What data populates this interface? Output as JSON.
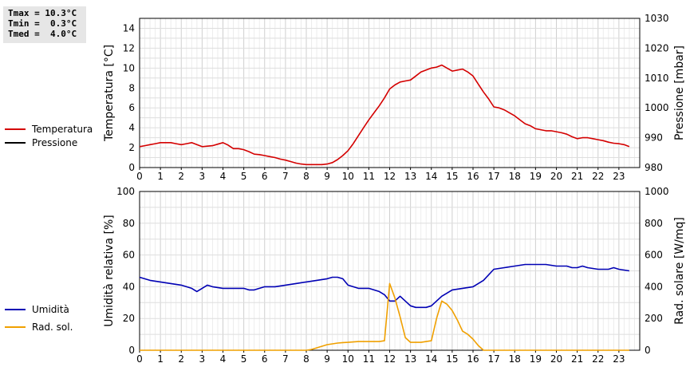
{
  "stats": {
    "tmax": "Tmax = 10.3°C",
    "tmin": "Tmin =  0.3°C",
    "tmed": "Tmed =  4.0°C"
  },
  "colors": {
    "temperature": "#d40000",
    "pressure": "#000000",
    "humidity": "#0000b4",
    "radiation": "#f0a000",
    "grid": "#d8d8d8"
  },
  "chart_data": [
    {
      "type": "line",
      "x_ticks": [
        "0",
        "1",
        "2",
        "3",
        "4",
        "5",
        "6",
        "7",
        "8",
        "9",
        "10",
        "11",
        "12",
        "13",
        "14",
        "15",
        "16",
        "17",
        "18",
        "19",
        "20",
        "21",
        "22",
        "23"
      ],
      "xlim": [
        0,
        24
      ],
      "ylabel": "Temperatura [°C]",
      "ylim": [
        0,
        15
      ],
      "y_ticks": [
        "0",
        "2",
        "4",
        "6",
        "8",
        "10",
        "12",
        "14"
      ],
      "y2label": "Pressione [mbar]",
      "y2lim": [
        980,
        1030
      ],
      "y2_ticks": [
        "980",
        "990",
        "1000",
        "1010",
        "1020",
        "1030"
      ],
      "grid": true,
      "series": [
        {
          "name": "Temperatura",
          "axis": "left",
          "x": [
            0,
            0.25,
            0.5,
            0.75,
            1,
            1.25,
            1.5,
            1.75,
            2,
            2.25,
            2.5,
            2.75,
            3,
            3.25,
            3.5,
            3.75,
            4,
            4.25,
            4.5,
            4.75,
            5,
            5.25,
            5.5,
            5.75,
            6,
            6.25,
            6.5,
            6.75,
            7,
            7.25,
            7.5,
            7.75,
            8,
            8.25,
            8.5,
            8.75,
            9,
            9.25,
            9.5,
            9.75,
            10,
            10.25,
            10.5,
            10.75,
            11,
            11.25,
            11.5,
            11.75,
            12,
            12.25,
            12.5,
            12.75,
            13,
            13.25,
            13.5,
            13.75,
            14,
            14.25,
            14.5,
            14.75,
            15,
            15.25,
            15.5,
            15.75,
            16,
            16.25,
            16.5,
            16.75,
            17,
            17.25,
            17.5,
            17.75,
            18,
            18.25,
            18.5,
            18.75,
            19,
            19.25,
            19.5,
            19.75,
            20,
            20.25,
            20.5,
            20.75,
            21,
            21.25,
            21.5,
            21.75,
            22,
            22.25,
            22.5,
            22.75,
            23,
            23.25,
            23.5
          ],
          "values": [
            2.1,
            2.2,
            2.3,
            2.4,
            2.5,
            2.5,
            2.5,
            2.4,
            2.3,
            2.4,
            2.5,
            2.3,
            2.1,
            2.15,
            2.2,
            2.35,
            2.5,
            2.25,
            1.9,
            1.9,
            1.8,
            1.6,
            1.35,
            1.3,
            1.2,
            1.1,
            1.0,
            0.85,
            0.75,
            0.6,
            0.45,
            0.35,
            0.3,
            0.3,
            0.3,
            0.3,
            0.35,
            0.5,
            0.8,
            1.2,
            1.7,
            2.4,
            3.2,
            4.0,
            4.8,
            5.5,
            6.2,
            7.0,
            7.9,
            8.3,
            8.6,
            8.7,
            8.8,
            9.2,
            9.6,
            9.8,
            10.0,
            10.1,
            10.3,
            10.0,
            9.7,
            9.8,
            9.9,
            9.6,
            9.2,
            8.4,
            7.6,
            6.9,
            6.1,
            6.0,
            5.8,
            5.5,
            5.2,
            4.8,
            4.4,
            4.2,
            3.9,
            3.8,
            3.7,
            3.7,
            3.6,
            3.5,
            3.35,
            3.1,
            2.9,
            3.0,
            3.0,
            2.9,
            2.8,
            2.7,
            2.55,
            2.45,
            2.4,
            2.3,
            2.1
          ]
        },
        {
          "name": "Pressione",
          "axis": "right",
          "x": [],
          "values": []
        }
      ]
    },
    {
      "type": "line",
      "x_ticks": [
        "0",
        "1",
        "2",
        "3",
        "4",
        "5",
        "6",
        "7",
        "8",
        "9",
        "10",
        "11",
        "12",
        "13",
        "14",
        "15",
        "16",
        "17",
        "18",
        "19",
        "20",
        "21",
        "22",
        "23"
      ],
      "xlim": [
        0,
        24
      ],
      "ylabel": "Umidità relativa [%]",
      "ylim": [
        0,
        100
      ],
      "y_ticks": [
        "0",
        "20",
        "40",
        "60",
        "80",
        "100"
      ],
      "y2label": "Rad. solare [W/mq]",
      "y2lim": [
        0,
        1000
      ],
      "y2_ticks": [
        "0",
        "200",
        "400",
        "600",
        "800",
        "1000"
      ],
      "grid": true,
      "series": [
        {
          "name": "Umidità",
          "axis": "left",
          "x": [
            0,
            0.5,
            1,
            1.5,
            2,
            2.25,
            2.5,
            2.75,
            3,
            3.25,
            3.5,
            4,
            4.5,
            5,
            5.25,
            5.5,
            5.75,
            6,
            6.5,
            7,
            7.5,
            8,
            8.5,
            9,
            9.25,
            9.5,
            9.75,
            10,
            10.5,
            11,
            11.25,
            11.5,
            11.75,
            12,
            12.25,
            12.5,
            12.75,
            13,
            13.25,
            13.5,
            13.75,
            14,
            14.25,
            14.5,
            14.75,
            15,
            15.5,
            16,
            16.5,
            17,
            17.5,
            18,
            18.5,
            19,
            19.5,
            20,
            20.5,
            20.75,
            21,
            21.25,
            21.5,
            22,
            22.25,
            22.5,
            22.75,
            23,
            23.5
          ],
          "values": [
            46,
            44,
            43,
            42,
            41,
            40,
            39,
            37,
            39,
            41,
            40,
            39,
            39,
            39,
            38,
            38,
            39,
            40,
            40,
            41,
            42,
            43,
            44,
            45,
            46,
            46,
            45,
            41,
            39,
            39,
            38,
            37,
            35,
            31,
            31,
            34,
            31,
            28,
            27,
            27,
            27,
            28,
            31,
            34,
            36,
            38,
            39,
            40,
            44,
            51,
            52,
            53,
            54,
            54,
            54,
            53,
            53,
            52,
            52,
            53,
            52,
            51,
            51,
            51,
            52,
            51,
            50
          ]
        },
        {
          "name": "Rad. sol.",
          "axis": "right",
          "x": [
            0,
            1,
            2,
            3,
            4,
            5,
            6,
            7,
            8,
            8.25,
            8.5,
            8.75,
            9,
            9.25,
            9.5,
            9.75,
            10,
            10.5,
            11,
            11.5,
            11.75,
            12,
            12.25,
            12.5,
            12.75,
            13,
            13.25,
            13.5,
            13.75,
            14,
            14.25,
            14.5,
            14.75,
            15,
            15.25,
            15.5,
            15.75,
            16,
            16.25,
            16.5,
            16.75,
            17,
            18,
            19,
            20,
            21,
            22,
            23,
            23.5
          ],
          "values": [
            0,
            0,
            0,
            0,
            0,
            0,
            0,
            0,
            0,
            5,
            15,
            25,
            35,
            40,
            45,
            48,
            50,
            55,
            55,
            55,
            60,
            420,
            330,
            210,
            80,
            50,
            50,
            50,
            55,
            60,
            200,
            310,
            290,
            250,
            190,
            120,
            100,
            70,
            30,
            0,
            0,
            0,
            0,
            0,
            0,
            0,
            0,
            0,
            0
          ]
        }
      ]
    }
  ]
}
